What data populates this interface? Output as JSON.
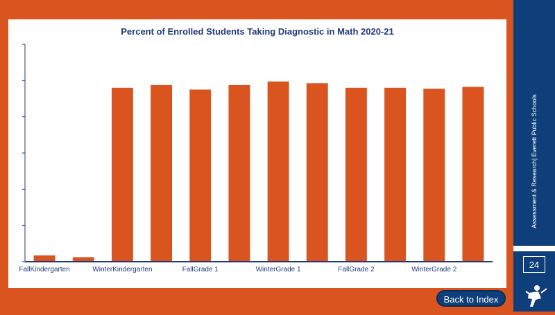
{
  "slide": {
    "side_text": "Assessment & Research| Everett Public Schools",
    "page_number": "24",
    "back_button_label": "Back to Index",
    "logo_icon": "runner-logo-icon",
    "colors": {
      "orange": "#d9541e",
      "navy": "#0e3f7a",
      "bar": "#d9541e",
      "title": "#1f3a78"
    }
  },
  "chart_data": {
    "type": "bar",
    "title": "Percent of Enrolled Students Taking Diagnostic in Math 2020-21",
    "xlabel": "",
    "ylabel": "",
    "ylim": [
      0,
      120
    ],
    "grid": false,
    "categories": [
      "FallKindergarten",
      "",
      "WinterKindergarten",
      "",
      "FallGrade 1",
      "",
      "WinterGrade 1",
      "",
      "FallGrade 2",
      "",
      "WinterGrade 2",
      ""
    ],
    "values": [
      3.5,
      2.5,
      96,
      97.5,
      95,
      97.5,
      99.5,
      98.5,
      96,
      96,
      95.5,
      96.5
    ]
  }
}
